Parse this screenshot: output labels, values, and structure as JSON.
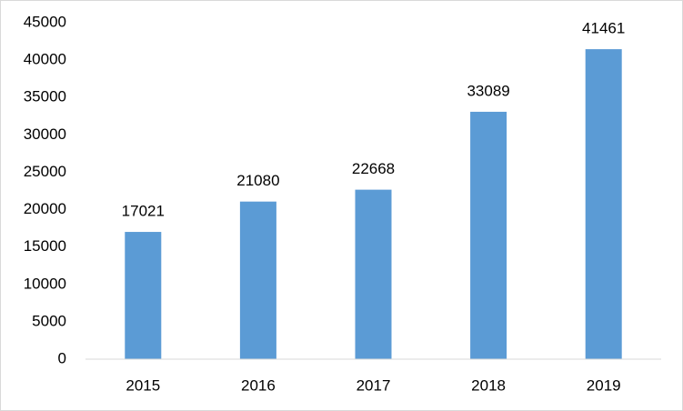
{
  "chart_data": {
    "type": "bar",
    "categories": [
      "2015",
      "2016",
      "2017",
      "2018",
      "2019"
    ],
    "values": [
      17021,
      21080,
      22668,
      33089,
      41461
    ],
    "color": "#5b9bd5",
    "ylim": [
      0,
      45000
    ],
    "yticks": [
      0,
      5000,
      10000,
      15000,
      20000,
      25000,
      30000,
      35000,
      40000,
      45000
    ],
    "grid": false
  }
}
